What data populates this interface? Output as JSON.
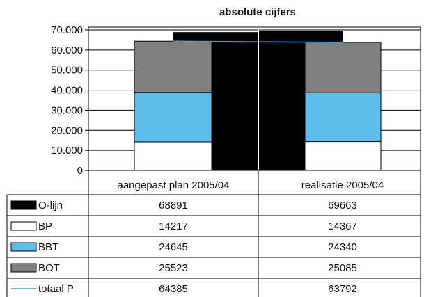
{
  "chart_data": {
    "type": "bar",
    "title": "absolute cijfers",
    "categories": [
      "aangepast plan 2005/04",
      "realisatie 2005/04"
    ],
    "ylim": [
      0,
      70000
    ],
    "y_ticks": [
      "0",
      "10.000",
      "20.000",
      "30.000",
      "40.000",
      "50.000",
      "60.000",
      "70.000"
    ],
    "y_tick_values": [
      0,
      10000,
      20000,
      30000,
      40000,
      50000,
      60000,
      70000
    ],
    "grid": true,
    "series": [
      {
        "name": "O-lijn",
        "kind": "bar",
        "color": "#000000",
        "values": [
          68891,
          69663
        ],
        "labels": [
          "68891",
          "69663"
        ]
      },
      {
        "name": "BP",
        "kind": "stack",
        "color": "#ffffff",
        "values": [
          14217,
          14367
        ],
        "labels": [
          "14217",
          "14367"
        ]
      },
      {
        "name": "BBT",
        "kind": "stack",
        "color": "#5bbde8",
        "values": [
          24645,
          24340
        ],
        "labels": [
          "24645",
          "24340"
        ]
      },
      {
        "name": "BOT",
        "kind": "stack",
        "color": "#808080",
        "values": [
          25523,
          25085
        ],
        "labels": [
          "25523",
          "25085"
        ]
      },
      {
        "name": "totaal P",
        "kind": "line",
        "color": "#2aa4dc",
        "values": [
          64385,
          63792
        ],
        "labels": [
          "64385",
          "63792"
        ]
      }
    ]
  }
}
